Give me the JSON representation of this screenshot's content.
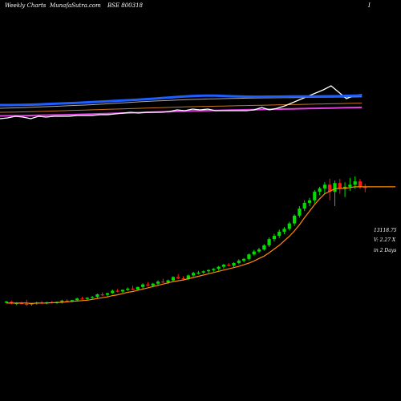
{
  "header": {
    "left": "Weekly Charts",
    "mid": "MunafaSutra.com",
    "right": "BSE 800318",
    "far": "I"
  },
  "labels": {
    "price": "13118.75",
    "volume": "V: 2.27 X",
    "days": "in 2 Days"
  },
  "colors": {
    "background": "#000000",
    "up": "#00dd00",
    "down": "#ff1a1a",
    "ma_price": "#ff8c00",
    "blue_line": "#1f5fff",
    "white_line": "#ffffff",
    "grey_line": "#aaaaaa",
    "orange_line": "#c8761c",
    "magenta_line": "#e040e0"
  },
  "chart_data": {
    "type": "candlestick",
    "ohlc": [
      [
        364,
        368,
        362,
        367
      ],
      [
        366,
        369,
        360,
        362
      ],
      [
        362,
        365,
        358,
        363
      ],
      [
        363,
        366,
        360,
        361
      ],
      [
        361,
        371,
        356,
        359
      ],
      [
        360,
        363,
        357,
        362
      ],
      [
        362,
        366,
        359,
        364
      ],
      [
        364,
        368,
        361,
        363
      ],
      [
        363,
        366,
        360,
        365
      ],
      [
        365,
        368,
        362,
        364
      ],
      [
        364,
        367,
        361,
        366
      ],
      [
        366,
        371,
        362,
        369
      ],
      [
        369,
        372,
        366,
        368
      ],
      [
        368,
        371,
        365,
        370
      ],
      [
        370,
        376,
        367,
        374
      ],
      [
        374,
        378,
        371,
        373
      ],
      [
        373,
        377,
        370,
        376
      ],
      [
        376,
        380,
        373,
        378
      ],
      [
        378,
        386,
        374,
        384
      ],
      [
        384,
        389,
        380,
        383
      ],
      [
        383,
        388,
        379,
        387
      ],
      [
        387,
        396,
        385,
        393
      ],
      [
        393,
        397,
        389,
        391
      ],
      [
        391,
        396,
        388,
        395
      ],
      [
        395,
        401,
        392,
        398
      ],
      [
        398,
        405,
        394,
        396
      ],
      [
        396,
        403,
        393,
        402
      ],
      [
        402,
        411,
        398,
        408
      ],
      [
        408,
        414,
        404,
        405
      ],
      [
        405,
        412,
        401,
        410
      ],
      [
        410,
        418,
        406,
        415
      ],
      [
        415,
        422,
        412,
        413
      ],
      [
        413,
        420,
        409,
        418
      ],
      [
        418,
        428,
        415,
        426
      ],
      [
        426,
        433,
        421,
        423
      ],
      [
        423,
        428,
        418,
        421
      ],
      [
        421,
        432,
        419,
        430
      ],
      [
        430,
        439,
        427,
        436
      ],
      [
        436,
        441,
        432,
        437
      ],
      [
        437,
        442,
        434,
        440
      ],
      [
        440,
        445,
        436,
        443
      ],
      [
        443,
        448,
        439,
        446
      ],
      [
        446,
        453,
        442,
        451
      ],
      [
        451,
        458,
        447,
        456
      ],
      [
        456,
        460,
        452,
        454
      ],
      [
        454,
        462,
        450,
        460
      ],
      [
        460,
        469,
        457,
        466
      ],
      [
        466,
        472,
        462,
        470
      ],
      [
        470,
        483,
        467,
        481
      ],
      [
        481,
        492,
        478,
        488
      ],
      [
        488,
        497,
        484,
        493
      ],
      [
        493,
        506,
        490,
        503
      ],
      [
        503,
        522,
        499,
        518
      ],
      [
        518,
        531,
        512,
        526
      ],
      [
        526,
        541,
        521,
        536
      ],
      [
        536,
        547,
        530,
        543
      ],
      [
        543,
        560,
        539,
        556
      ],
      [
        556,
        578,
        550,
        575
      ],
      [
        575,
        598,
        570,
        592
      ],
      [
        592,
        612,
        586,
        606
      ],
      [
        606,
        618,
        598,
        612
      ],
      [
        612,
        637,
        605,
        633
      ],
      [
        633,
        645,
        625,
        641
      ],
      [
        641,
        656,
        628,
        650
      ],
      [
        650,
        664,
        612,
        633
      ],
      [
        633,
        660,
        598,
        654
      ],
      [
        654,
        664,
        628,
        640
      ],
      [
        640,
        656,
        620,
        645
      ],
      [
        645,
        666,
        635,
        650
      ],
      [
        650,
        670,
        640,
        658
      ],
      [
        658,
        664,
        640,
        645
      ],
      [
        645,
        652,
        632,
        642
      ]
    ],
    "ma_price": [
      363,
      363,
      363,
      363,
      363,
      362,
      363,
      363,
      363,
      364,
      364,
      365,
      366,
      367,
      368,
      369,
      370,
      372,
      374,
      376,
      378,
      381,
      383,
      386,
      389,
      391,
      394,
      397,
      400,
      403,
      406,
      409,
      412,
      415,
      417,
      419,
      422,
      425,
      428,
      431,
      434,
      437,
      440,
      443,
      446,
      449,
      452,
      456,
      460,
      465,
      471,
      477,
      485,
      494,
      503,
      514,
      525,
      538,
      553,
      570,
      586,
      602,
      616,
      628,
      634,
      640,
      641,
      641,
      643,
      645,
      645,
      645
    ],
    "blue_line": [
      0.69,
      0.69,
      0.691,
      0.693,
      0.695,
      0.698,
      0.702,
      0.706,
      0.71,
      0.714,
      0.718,
      0.722,
      0.727,
      0.732,
      0.737,
      0.742,
      0.747,
      0.752,
      0.758,
      0.764,
      0.77,
      0.777,
      0.784,
      0.791,
      0.798,
      0.803,
      0.806,
      0.808,
      0.808,
      0.804,
      0.8,
      0.797,
      0.795,
      0.794,
      0.794,
      0.795,
      0.795,
      0.796,
      0.797,
      0.797,
      0.798,
      0.798,
      0.799,
      0.8,
      0.801,
      0.805,
      0.807,
      0.808
    ],
    "white_line": [
      0.52,
      0.53,
      0.55,
      0.54,
      0.52,
      0.55,
      0.54,
      0.55,
      0.55,
      0.55,
      0.56,
      0.56,
      0.56,
      0.57,
      0.57,
      0.58,
      0.59,
      0.6,
      0.59,
      0.6,
      0.6,
      0.6,
      0.61,
      0.63,
      0.62,
      0.64,
      0.63,
      0.64,
      0.62,
      0.62,
      0.62,
      0.62,
      0.62,
      0.63,
      0.66,
      0.63,
      0.65,
      0.68,
      0.72,
      0.76,
      0.8,
      0.84,
      0.88,
      0.93,
      0.85,
      0.77,
      0.81,
      0.82
    ],
    "grey_line": [
      0.65,
      0.652,
      0.655,
      0.658,
      0.662,
      0.666,
      0.67,
      0.674,
      0.678,
      0.682,
      0.686,
      0.69,
      0.695,
      0.7,
      0.706,
      0.712,
      0.718,
      0.724,
      0.73,
      0.735,
      0.74,
      0.744,
      0.748,
      0.752,
      0.756,
      0.76,
      0.763,
      0.766,
      0.768,
      0.77,
      0.772,
      0.774,
      0.776,
      0.778,
      0.779,
      0.78,
      0.781,
      0.782,
      0.783,
      0.784,
      0.785,
      0.786,
      0.787,
      0.788,
      0.789,
      0.79,
      0.791,
      0.792
    ],
    "orange_line": [
      0.6,
      0.601,
      0.603,
      0.605,
      0.607,
      0.61,
      0.613,
      0.616,
      0.619,
      0.622,
      0.625,
      0.628,
      0.631,
      0.634,
      0.637,
      0.64,
      0.643,
      0.646,
      0.649,
      0.652,
      0.655,
      0.658,
      0.661,
      0.664,
      0.667,
      0.67,
      0.672,
      0.674,
      0.676,
      0.678,
      0.68,
      0.682,
      0.684,
      0.686,
      0.688,
      0.69,
      0.692,
      0.694,
      0.696,
      0.698,
      0.7,
      0.702,
      0.704,
      0.706,
      0.708,
      0.71,
      0.712,
      0.714
    ],
    "magenta_line": [
      0.555,
      0.556,
      0.557,
      0.558,
      0.56,
      0.562,
      0.564,
      0.566,
      0.568,
      0.57,
      0.572,
      0.575,
      0.578,
      0.581,
      0.584,
      0.587,
      0.59,
      0.593,
      0.596,
      0.599,
      0.602,
      0.605,
      0.608,
      0.611,
      0.614,
      0.617,
      0.619,
      0.621,
      0.623,
      0.625,
      0.627,
      0.629,
      0.631,
      0.633,
      0.635,
      0.637,
      0.639,
      0.641,
      0.643,
      0.645,
      0.647,
      0.649,
      0.651,
      0.653,
      0.655,
      0.657,
      0.659,
      0.661
    ]
  }
}
